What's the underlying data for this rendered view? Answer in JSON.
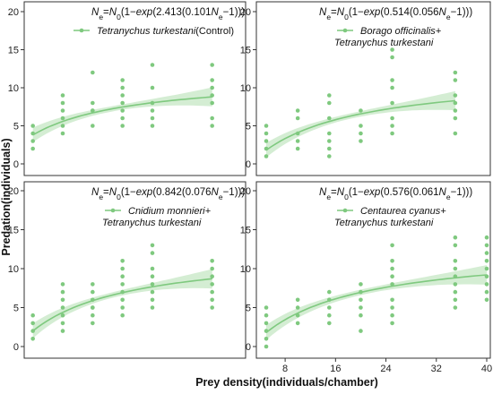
{
  "figure": {
    "xlabel": "Prey density(individuals/chamber)",
    "ylabel": "Predation(individuals)"
  },
  "colors": {
    "series": "#7fc97f",
    "band": "#cdeacb",
    "axis": "#333333"
  },
  "chart_data": [
    {
      "type": "scatter",
      "equation": "N_e=N_0(1−exp(2.413(0.101N_e−1)))",
      "equation_parts": [
        "N",
        "e",
        "=",
        "N",
        "0",
        "(1−",
        "exp",
        "(2.413(0.101",
        "N",
        "e",
        "−1)))"
      ],
      "legend": [
        "Tetranychus turkestani",
        "(Control)"
      ],
      "xlim": [
        4,
        40
      ],
      "ylim": [
        0,
        20
      ],
      "xticks": [],
      "yticks": [
        0,
        5,
        10,
        15,
        20
      ],
      "x": [
        5,
        5,
        5,
        5,
        10,
        10,
        10,
        10,
        10,
        10,
        15,
        15,
        15,
        15,
        15,
        20,
        20,
        20,
        20,
        20,
        20,
        20,
        25,
        25,
        25,
        25,
        25,
        25,
        35,
        35,
        35,
        35,
        35,
        35,
        35
      ],
      "y": [
        2,
        3,
        4,
        5,
        4,
        5,
        6,
        7,
        8,
        9,
        5,
        7,
        8,
        12,
        7,
        5,
        6,
        7,
        8,
        9,
        10,
        11,
        5,
        6,
        7,
        8,
        10,
        13,
        5,
        6,
        8,
        9,
        10,
        11,
        13
      ],
      "fit_x": [
        5,
        35
      ],
      "fit_y": [
        3.8,
        8.8
      ]
    },
    {
      "type": "scatter",
      "equation": "N_e=N_0(1−exp(0.514(0.056N_e−1)))",
      "equation_parts": [
        "N",
        "e",
        "=",
        "N",
        "0",
        "(1−",
        "exp",
        "(0.514(0.056",
        "N",
        "e",
        "−1)))"
      ],
      "legend": [
        "Borago officinalis+",
        "Tetranychus turkestani"
      ],
      "xlim": [
        4,
        40
      ],
      "ylim": [
        0,
        20
      ],
      "xticks": [],
      "yticks": [
        0,
        5,
        10,
        15,
        20
      ],
      "x": [
        5,
        5,
        5,
        5,
        5,
        10,
        10,
        10,
        10,
        10,
        15,
        15,
        15,
        15,
        15,
        15,
        15,
        20,
        20,
        20,
        20,
        25,
        25,
        25,
        25,
        25,
        25,
        25,
        25,
        35,
        35,
        35,
        35,
        35,
        35,
        35
      ],
      "y": [
        1,
        2,
        3,
        4,
        5,
        2,
        3,
        4,
        6,
        7,
        1,
        2,
        3,
        4,
        6,
        8,
        9,
        3,
        4,
        5,
        7,
        4,
        5,
        6,
        8,
        10,
        11,
        14,
        15,
        4,
        6,
        7,
        8,
        9,
        11,
        12
      ],
      "fit_x": [
        5,
        35
      ],
      "fit_y": [
        1.8,
        8.3
      ]
    },
    {
      "type": "scatter",
      "equation": "N_e=N_0(1−exp(0.842(0.076N_e−1)))",
      "equation_parts": [
        "N",
        "e",
        "=",
        "N",
        "0",
        "(1−",
        "exp",
        "(0.842(0.076",
        "N",
        "e",
        "−1)))"
      ],
      "legend": [
        "Cnidium monnieri+",
        "Tetranychus turkestani"
      ],
      "xlim": [
        4,
        40
      ],
      "ylim": [
        0,
        20
      ],
      "xticks": [],
      "yticks": [
        0,
        5,
        10,
        15,
        20
      ],
      "x": [
        5,
        5,
        5,
        5,
        10,
        10,
        10,
        10,
        10,
        10,
        10,
        15,
        15,
        15,
        15,
        15,
        15,
        15,
        20,
        20,
        20,
        20,
        20,
        20,
        20,
        20,
        25,
        25,
        25,
        25,
        25,
        25,
        25,
        25,
        35,
        35,
        35,
        35,
        35,
        35,
        35
      ],
      "y": [
        1,
        2,
        3,
        4,
        2,
        3,
        4,
        5,
        6,
        7,
        8,
        3,
        4,
        5,
        6,
        7,
        8,
        5,
        4,
        5,
        6,
        7,
        8,
        9,
        10,
        11,
        5,
        6,
        7,
        8,
        9,
        10,
        12,
        13,
        5,
        6,
        7,
        8,
        9,
        10,
        11
      ],
      "fit_x": [
        5,
        35
      ],
      "fit_y": [
        2.0,
        8.7
      ]
    },
    {
      "type": "scatter",
      "equation": "N_e=N_0(1−exp(0.576(0.061N_e−1)))",
      "equation_parts": [
        "N",
        "e",
        "=",
        "N",
        "0",
        "(1−",
        "exp",
        "(0.576(0.061",
        "N",
        "e",
        "−1)))"
      ],
      "legend": [
        "Centaurea cyanus+",
        "Tetranychus turkestani"
      ],
      "xlim": [
        4,
        40
      ],
      "ylim": [
        0,
        20
      ],
      "xticks": [
        8,
        16,
        24,
        32,
        40
      ],
      "yticks": [
        0,
        5,
        10,
        15,
        20
      ],
      "x": [
        5,
        5,
        5,
        5,
        5,
        5,
        10,
        10,
        10,
        10,
        15,
        15,
        15,
        15,
        15,
        20,
        20,
        20,
        20,
        20,
        20,
        25,
        25,
        25,
        25,
        25,
        25,
        25,
        25,
        25,
        35,
        35,
        35,
        35,
        35,
        35,
        35,
        35,
        35,
        40,
        40,
        40,
        40,
        40,
        40,
        40,
        40,
        40
      ],
      "y": [
        0,
        1,
        2,
        3,
        4,
        5,
        3,
        4,
        5,
        6,
        4,
        5,
        6,
        7,
        3,
        2,
        4,
        5,
        6,
        7,
        8,
        3,
        4,
        5,
        6,
        8,
        9,
        10,
        11,
        13,
        5,
        6,
        7,
        8,
        9,
        10,
        11,
        13,
        14,
        6,
        7,
        8,
        9,
        10,
        11,
        12,
        13,
        14
      ],
      "fit_x": [
        5,
        40
      ],
      "fit_y": [
        1.8,
        9.2
      ]
    }
  ]
}
